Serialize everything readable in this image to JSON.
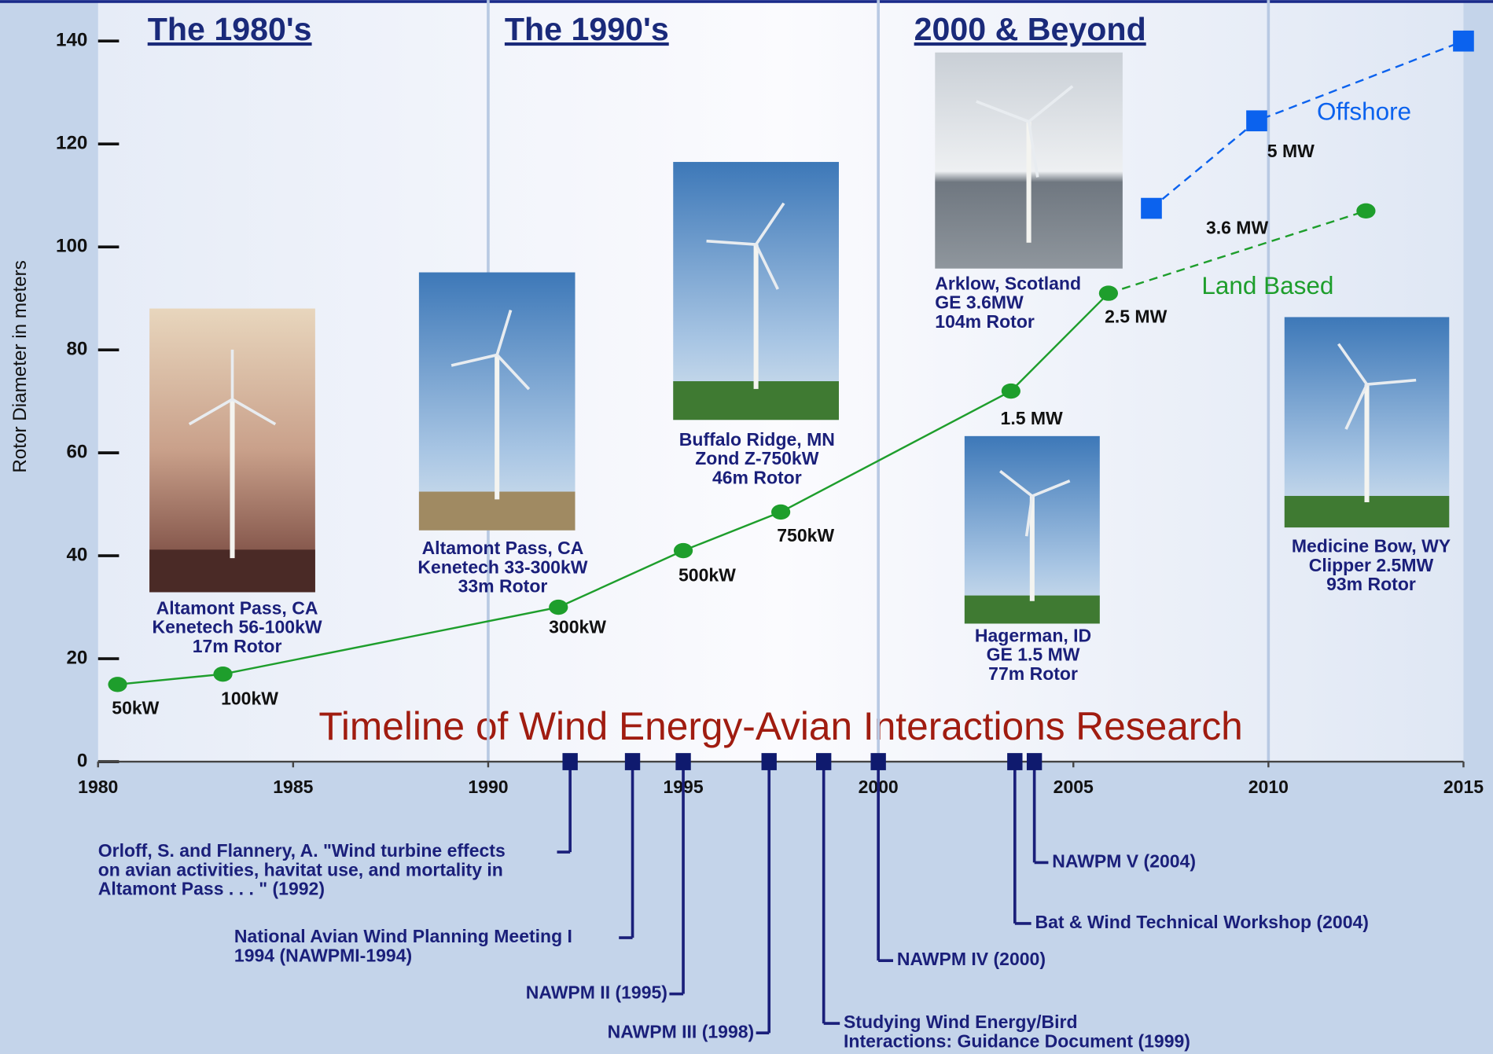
{
  "chart_data": {
    "type": "line",
    "title": "Timeline of Wind Energy-Avian Interactions Research",
    "y_label": "Rotor Diameter in meters",
    "xlim": [
      1980,
      2015
    ],
    "ylim": [
      0,
      140
    ],
    "xticks": [
      1980,
      1985,
      1990,
      1995,
      2000,
      2005,
      2010,
      2015
    ],
    "yticks": [
      0,
      20,
      40,
      60,
      80,
      100,
      120,
      140
    ],
    "dividers": [
      1990,
      2000,
      2010
    ],
    "eras": [
      "The 1980's",
      "The 1990's",
      "2000 & Beyond"
    ],
    "series": [
      {
        "name": "Land Based",
        "color": "#1e9e2c",
        "marker": "circle",
        "dashed_from": 6,
        "x": [
          1980.5,
          1983.2,
          1991.8,
          1995.0,
          1997.5,
          2003.4,
          2005.9,
          2012.5
        ],
        "values": [
          15,
          17,
          30,
          41,
          48.5,
          72,
          91,
          107
        ],
        "point_labels": [
          "50kW",
          "100kW",
          "300kW",
          "500kW",
          "750kW",
          "1.5 MW",
          "2.5 MW",
          "3.6 MW"
        ]
      },
      {
        "name": "Offshore",
        "color": "#0b62ee",
        "marker": "square",
        "dashed": true,
        "x": [
          2007.0,
          2009.7,
          2015.0
        ],
        "values": [
          107.5,
          124.5,
          140
        ],
        "point_labels": [
          null,
          "5 MW",
          null
        ]
      }
    ],
    "photos": [
      {
        "caption": [
          "Altamont Pass, CA",
          "Kenetech 56-100kW",
          "17m Rotor"
        ]
      },
      {
        "caption": [
          "Altamont Pass, CA",
          "Kenetech 33-300kW",
          "33m Rotor"
        ]
      },
      {
        "caption": [
          "Buffalo Ridge, MN",
          "Zond Z-750kW",
          "46m Rotor"
        ]
      },
      {
        "caption": [
          "Arklow, Scotland",
          "GE 3.6MW",
          "104m Rotor"
        ]
      },
      {
        "caption": [
          "Hagerman, ID",
          "GE 1.5 MW",
          "77m Rotor"
        ]
      },
      {
        "caption": [
          "Medicine Bow, WY",
          "Clipper 2.5MW",
          "93m Rotor"
        ]
      }
    ],
    "events": [
      {
        "x": 1992.1,
        "label": [
          "Orloff, S. and Flannery, A. \"Wind turbine effects",
          "on avian activities, havitat use, and mortality in",
          "Altamont Pass . . . \" (1992)"
        ]
      },
      {
        "x": 1993.7,
        "label": [
          "National Avian Wind Planning Meeting I",
          "1994 (NAWPMI-1994)"
        ]
      },
      {
        "x": 1995.0,
        "label": [
          "NAWPM II (1995)"
        ]
      },
      {
        "x": 1997.2,
        "label": [
          "NAWPM III (1998)"
        ]
      },
      {
        "x": 1998.6,
        "label": [
          "Studying Wind Energy/Bird",
          "Interactions:  Guidance Document (1999)"
        ]
      },
      {
        "x": 2000.0,
        "label": [
          "NAWPM IV (2000)"
        ]
      },
      {
        "x": 2003.5,
        "label": [
          "Bat & Wind Technical Workshop (2004)"
        ]
      },
      {
        "x": 2004.0,
        "label": [
          "NAWPM V (2004)"
        ]
      }
    ]
  }
}
